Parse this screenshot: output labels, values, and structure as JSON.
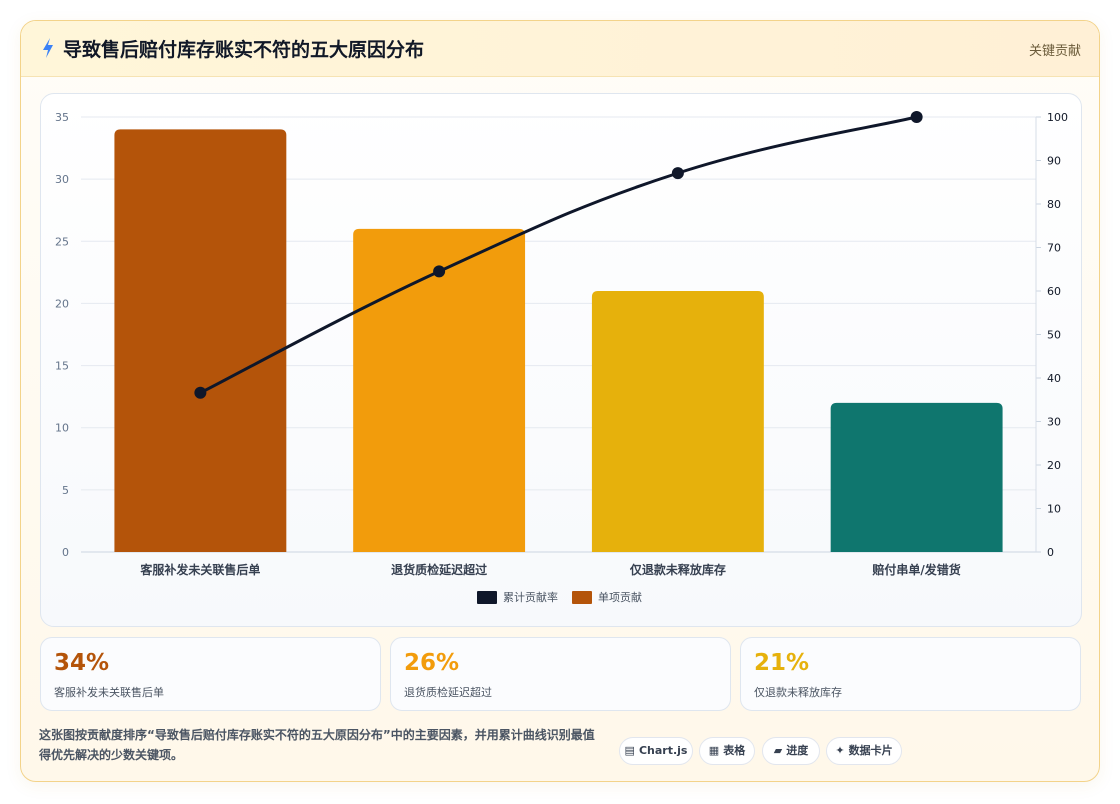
{
  "header": {
    "title": "导致售后赔付库存账实不符的五大原因分布",
    "tag": "关键贡献"
  },
  "colors": {
    "bars": [
      "#b4540a",
      "#f29c0c",
      "#e6b10c",
      "#0f766e"
    ],
    "line": "#0f172a"
  },
  "chart_data": {
    "type": "bar",
    "title": "",
    "categories": [
      "客服补发未关联售后单",
      "退货质检延迟超过",
      "仅退款未释放库存",
      "赔付串单/发错货"
    ],
    "series": [
      {
        "name": "单项贡献",
        "type": "bar",
        "axis": "left",
        "values": [
          34,
          26,
          21,
          12
        ]
      },
      {
        "name": "累计贡献率",
        "type": "line",
        "axis": "right",
        "values": [
          36.6,
          64.5,
          87.1,
          100
        ]
      }
    ],
    "y_left": {
      "range": [
        0,
        35
      ],
      "ticks": [
        "0",
        "5",
        "10",
        "15",
        "20",
        "25",
        "30",
        "35"
      ]
    },
    "y_right": {
      "range": [
        0,
        100
      ],
      "ticks": [
        "0",
        "10",
        "20",
        "30",
        "40",
        "50",
        "60",
        "70",
        "80",
        "90",
        "100"
      ]
    },
    "legend": {
      "placement": "bottom",
      "items": [
        "累计贡献率",
        "单项贡献"
      ]
    },
    "grid": true
  },
  "stats": [
    {
      "value": "34%",
      "label": "客服补发未关联售后单",
      "color": "#b4540a"
    },
    {
      "value": "26%",
      "label": "退货质检延迟超过",
      "color": "#f29c0c"
    },
    {
      "value": "21%",
      "label": "仅退款未释放库存",
      "color": "#e6b10c"
    }
  ],
  "description": "这张图按贡献度排序“导致售后赔付库存账实不符的五大原因分布”中的主要因素，并用累计曲线识别最值得优先解决的少数关键项。",
  "chips": [
    {
      "icon": "chart-icon",
      "glyph": "▤",
      "label": "Chart.js"
    },
    {
      "icon": "table-icon",
      "glyph": "▦",
      "label": "表格"
    },
    {
      "icon": "progress-icon",
      "glyph": "▰",
      "label": "进度"
    },
    {
      "icon": "sparkle-icon",
      "glyph": "✦",
      "label": "数据卡片"
    }
  ]
}
